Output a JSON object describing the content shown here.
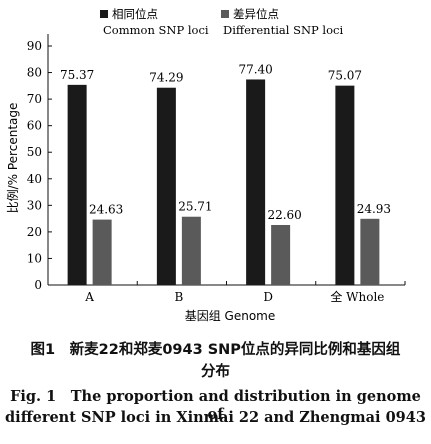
{
  "chart_data": {
    "type": "bar",
    "categories": [
      "A",
      "B",
      "D",
      "全 Whole"
    ],
    "series": [
      {
        "name": "相同位点 Common SNP loci",
        "name_cn": "相同位点",
        "name_en": "Common SNP loci",
        "values": [
          75.37,
          74.29,
          77.4,
          75.07
        ],
        "labels": [
          "75.37",
          "74.29",
          "77.40",
          "75.07"
        ],
        "color": "#1a1a1a"
      },
      {
        "name": "差异位点 Differential SNP loci",
        "name_cn": "差异位点",
        "name_en": "Differential SNP loci",
        "values": [
          24.63,
          25.71,
          22.6,
          24.93
        ],
        "labels": [
          "24.63",
          "25.71",
          "22.60",
          "24.93"
        ],
        "color": "#5a5a5a"
      }
    ],
    "xlabel": "基因组 Genome",
    "ylabel": "比例/% Percentage",
    "ylim": [
      0,
      90
    ],
    "yticks": [
      "0",
      "10",
      "20",
      "30",
      "40",
      "50",
      "60",
      "70",
      "80",
      "90"
    ],
    "legend_position": "top",
    "grid": false
  },
  "caption": {
    "cn_line1": "图1　新麦22和郑麦0943 SNP位点的异同比例和基因组",
    "cn_line2": "分布",
    "en_line1": "Fig. 1　The proportion and distribution in genome of",
    "en_line2": "different SNP loci in Xinmai 22 and Zhengmai 0943"
  }
}
